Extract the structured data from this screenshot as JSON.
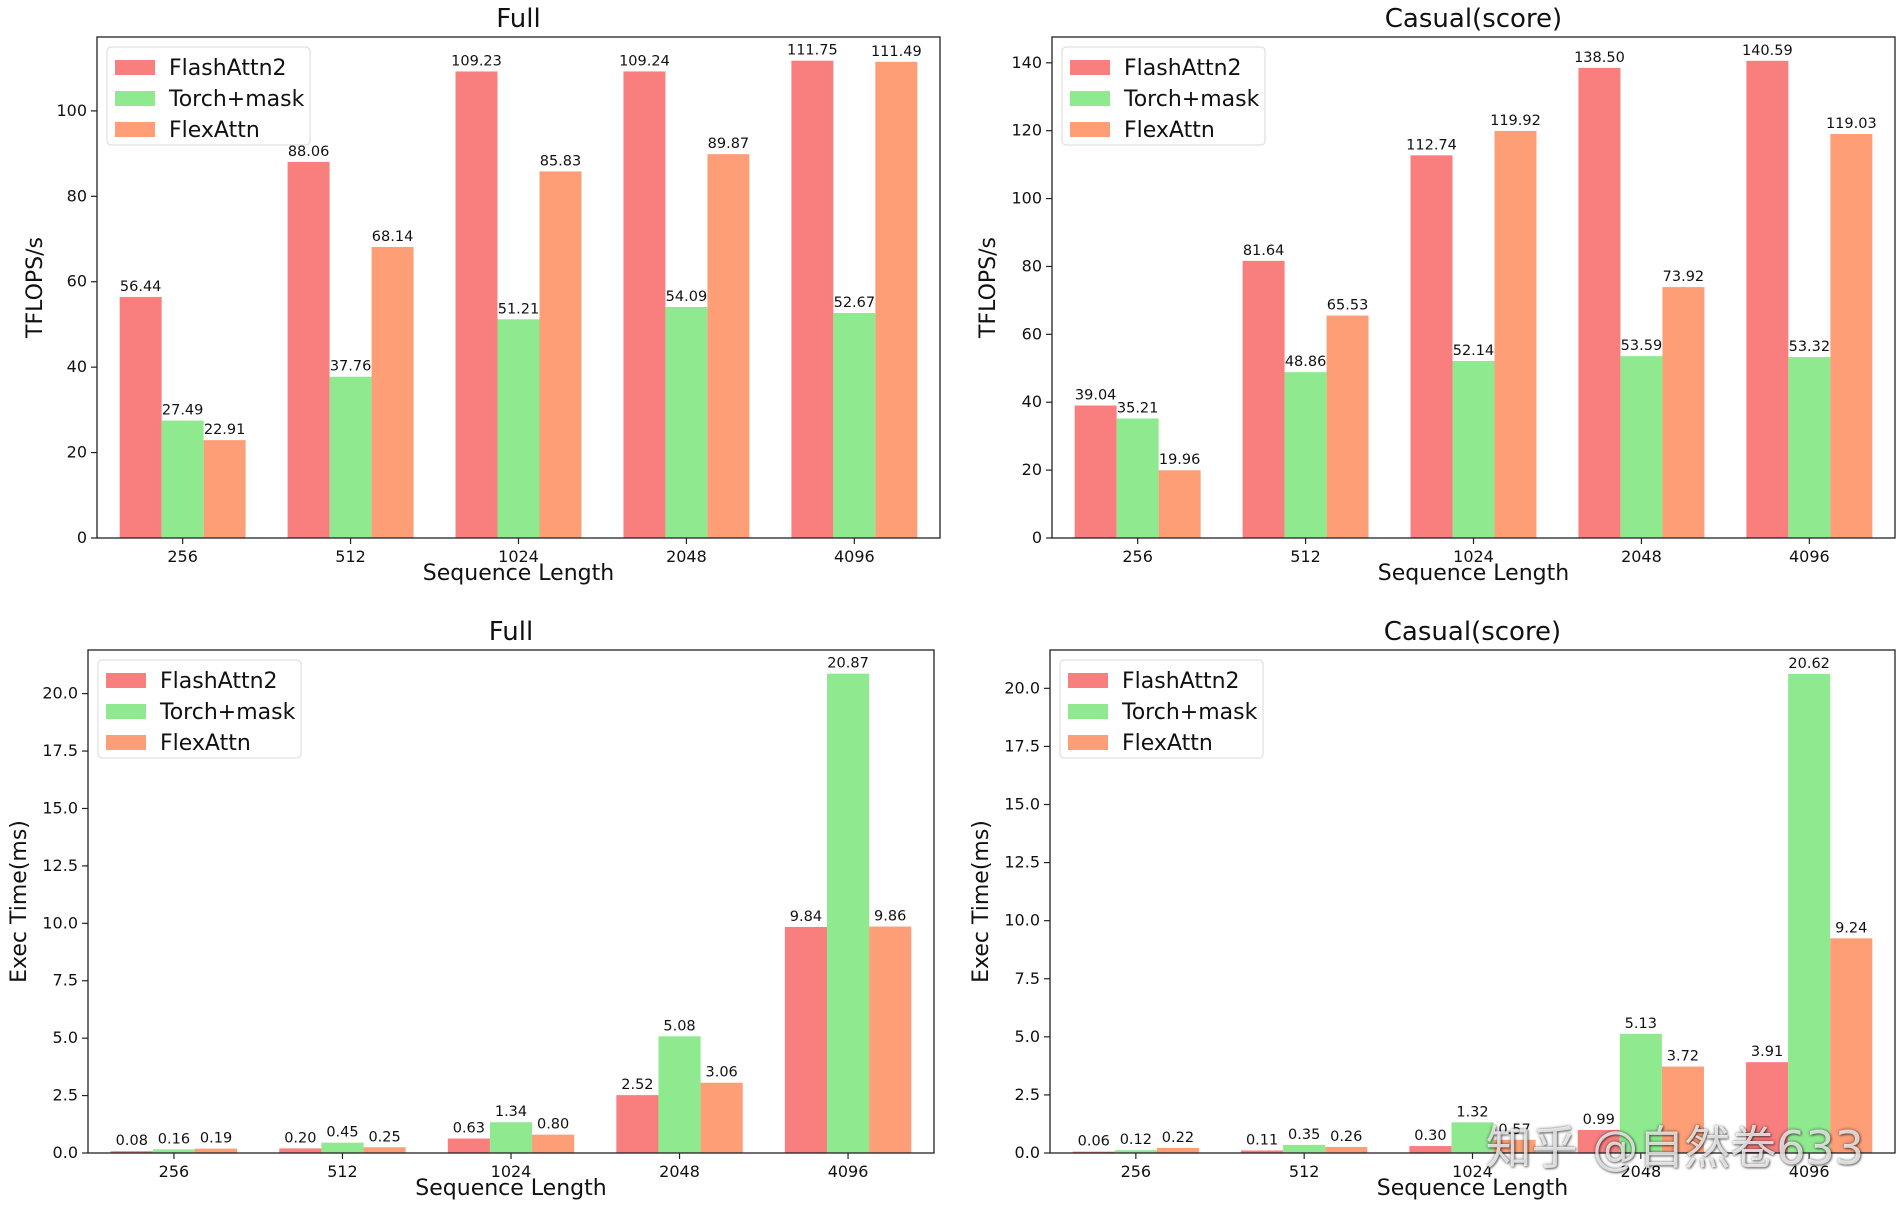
{
  "colors": {
    "FlashAttn2": "#f97f7f",
    "Torch+mask": "#8fea8f",
    "FlexAttn": "#fd9e77"
  },
  "watermark": "知乎 @自然卷633",
  "chart_data": [
    {
      "type": "bar",
      "title": "Full",
      "xlabel": "Sequence Length",
      "ylabel": "TFLOPS/s",
      "categories": [
        "256",
        "512",
        "1024",
        "2048",
        "4096"
      ],
      "ylim": [
        0,
        117.3
      ],
      "yticks": [
        0,
        20,
        40,
        60,
        80,
        100
      ],
      "ytick_labels": [
        "0",
        "20",
        "40",
        "60",
        "80",
        "100"
      ],
      "legend_position": "top-left",
      "series": [
        {
          "name": "FlashAttn2",
          "values": [
            56.44,
            88.06,
            109.23,
            109.24,
            111.75
          ],
          "labels": [
            "56.44",
            "88.06",
            "109.23",
            "109.24",
            "111.75"
          ]
        },
        {
          "name": "Torch+mask",
          "values": [
            27.49,
            37.76,
            51.21,
            54.09,
            52.67
          ],
          "labels": [
            "27.49",
            "37.76",
            "51.21",
            "54.09",
            "52.67"
          ]
        },
        {
          "name": "FlexAttn",
          "values": [
            22.91,
            68.14,
            85.83,
            89.87,
            111.49
          ],
          "labels": [
            "22.91",
            "68.14",
            "85.83",
            "89.87",
            "111.49"
          ]
        }
      ]
    },
    {
      "type": "bar",
      "title": "Casual(score)",
      "xlabel": "Sequence Length",
      "ylabel": "TFLOPS/s",
      "categories": [
        "256",
        "512",
        "1024",
        "2048",
        "4096"
      ],
      "ylim": [
        0,
        147.6
      ],
      "yticks": [
        0,
        20,
        40,
        60,
        80,
        100,
        120,
        140
      ],
      "ytick_labels": [
        "0",
        "20",
        "40",
        "60",
        "80",
        "100",
        "120",
        "140"
      ],
      "legend_position": "top-left",
      "series": [
        {
          "name": "FlashAttn2",
          "values": [
            39.04,
            81.64,
            112.74,
            138.5,
            140.59
          ],
          "labels": [
            "39.04",
            "81.64",
            "112.74",
            "138.50",
            "140.59"
          ]
        },
        {
          "name": "Torch+mask",
          "values": [
            35.21,
            48.86,
            52.14,
            53.59,
            53.32
          ],
          "labels": [
            "35.21",
            "48.86",
            "52.14",
            "53.59",
            "53.32"
          ]
        },
        {
          "name": "FlexAttn",
          "values": [
            19.96,
            65.53,
            119.92,
            73.92,
            119.03
          ],
          "labels": [
            "19.96",
            "65.53",
            "119.92",
            "73.92",
            "119.03"
          ]
        }
      ]
    },
    {
      "type": "bar",
      "title": "Full",
      "xlabel": "Sequence Length",
      "ylabel": "Exec Time(ms)",
      "categories": [
        "256",
        "512",
        "1024",
        "2048",
        "4096"
      ],
      "ylim": [
        0,
        21.9
      ],
      "yticks": [
        0,
        2.5,
        5,
        7.5,
        10,
        12.5,
        15,
        17.5,
        20
      ],
      "ytick_labels": [
        "0.0",
        "2.5",
        "5.0",
        "7.5",
        "10.0",
        "12.5",
        "15.0",
        "17.5",
        "20.0"
      ],
      "legend_position": "top-left",
      "series": [
        {
          "name": "FlashAttn2",
          "values": [
            0.08,
            0.2,
            0.63,
            2.52,
            9.84
          ],
          "labels": [
            "0.08",
            "0.20",
            "0.63",
            "2.52",
            "9.84"
          ]
        },
        {
          "name": "Torch+mask",
          "values": [
            0.16,
            0.45,
            1.34,
            5.08,
            20.87
          ],
          "labels": [
            "0.16",
            "0.45",
            "1.34",
            "5.08",
            "20.87"
          ]
        },
        {
          "name": "FlexAttn",
          "values": [
            0.19,
            0.25,
            0.8,
            3.06,
            9.86
          ],
          "labels": [
            "0.19",
            "0.25",
            "0.80",
            "3.06",
            "9.86"
          ]
        }
      ]
    },
    {
      "type": "bar",
      "title": "Casual(score)",
      "xlabel": "Sequence Length",
      "ylabel": "Exec Time(ms)",
      "categories": [
        "256",
        "512",
        "1024",
        "2048",
        "4096"
      ],
      "ylim": [
        0,
        21.65
      ],
      "yticks": [
        0,
        2.5,
        5,
        7.5,
        10,
        12.5,
        15,
        17.5,
        20
      ],
      "ytick_labels": [
        "0.0",
        "2.5",
        "5.0",
        "7.5",
        "10.0",
        "12.5",
        "15.0",
        "17.5",
        "20.0"
      ],
      "legend_position": "top-left",
      "series": [
        {
          "name": "FlashAttn2",
          "values": [
            0.06,
            0.11,
            0.3,
            0.99,
            3.91
          ],
          "labels": [
            "0.06",
            "0.11",
            "0.30",
            "0.99",
            "3.91"
          ]
        },
        {
          "name": "Torch+mask",
          "values": [
            0.12,
            0.35,
            1.32,
            5.13,
            20.62
          ],
          "labels": [
            "0.12",
            "0.35",
            "1.32",
            "5.13",
            "20.62"
          ]
        },
        {
          "name": "FlexAttn",
          "values": [
            0.22,
            0.26,
            0.57,
            3.72,
            9.24
          ],
          "labels": [
            "0.22",
            "0.26",
            "0.57",
            "3.72",
            "9.24"
          ]
        }
      ]
    }
  ]
}
